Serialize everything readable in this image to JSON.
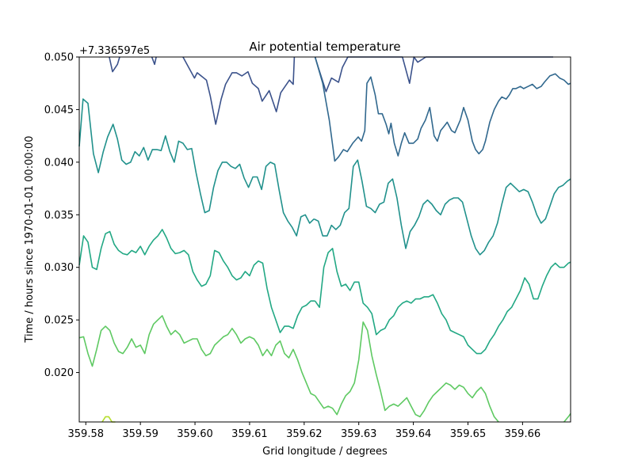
{
  "chart_data": {
    "type": "contour",
    "title": "Air potential temperature",
    "xlabel": "Grid longitude / degrees",
    "ylabel": "Time / hours since 1970-01-01 00:00:00",
    "y_offset_label": "+7.336597e5",
    "xlim": [
      359.5788,
      359.6688
    ],
    "ylim": [
      0.0153,
      0.05
    ],
    "x_ticks": [
      359.58,
      359.59,
      359.6,
      359.61,
      359.62,
      359.63,
      359.64,
      359.65,
      359.66
    ],
    "x_tick_labels": [
      "359.58",
      "359.59",
      "359.60",
      "359.61",
      "359.62",
      "359.63",
      "359.64",
      "359.65",
      "359.66"
    ],
    "y_ticks": [
      0.02,
      0.025,
      0.03,
      0.035,
      0.04,
      0.045,
      0.05
    ],
    "y_tick_labels": [
      "0.020",
      "0.025",
      "0.030",
      "0.035",
      "0.040",
      "0.045",
      "0.050"
    ],
    "series": [
      {
        "color": "#3b528b",
        "x": [
          359.5843,
          359.5849,
          359.5858,
          359.5862
        ],
        "y": [
          0.05,
          0.0486,
          0.0493,
          0.05
        ]
      },
      {
        "color": "#3b528b",
        "x": [
          359.5921,
          359.5926,
          359.5929
        ],
        "y": [
          0.05,
          0.0493,
          0.05
        ]
      },
      {
        "color": "#3b528b",
        "x": [
          359.5978,
          359.5999,
          359.6004,
          359.6021,
          359.6028,
          359.6038,
          359.6048,
          359.6056,
          359.6068,
          359.6076,
          359.6086,
          359.6097,
          359.6105,
          359.6116,
          359.6123,
          359.6136,
          359.6149,
          359.6157,
          359.6173,
          359.618,
          359.6182
        ],
        "y": [
          0.05,
          0.048,
          0.0485,
          0.0478,
          0.0463,
          0.0436,
          0.046,
          0.0474,
          0.0485,
          0.0485,
          0.0482,
          0.0486,
          0.0475,
          0.047,
          0.0458,
          0.0468,
          0.0448,
          0.0466,
          0.0478,
          0.0474,
          0.05
        ]
      },
      {
        "color": "#3b528b",
        "x": [
          359.622,
          359.6226,
          359.624,
          359.625,
          359.6263,
          359.627,
          359.628,
          359.6289,
          359.6299,
          359.6312,
          359.6318,
          359.6326,
          359.6336,
          359.6346,
          359.6353,
          359.6363,
          359.6374,
          359.638,
          359.6393,
          359.6401,
          359.6408,
          359.6423,
          359.6436,
          359.6446,
          359.6455,
          359.6463,
          359.6479,
          359.6488,
          359.6492
        ],
        "y": [
          0.05,
          0.049,
          0.0467,
          0.048,
          0.0476,
          0.049,
          0.05,
          0.05,
          0.05,
          0.05,
          0.05,
          0.05,
          0.05,
          0.05,
          0.05,
          0.05,
          0.05,
          0.05,
          0.0475,
          0.05,
          0.0495,
          0.05,
          0.05,
          0.05,
          0.05,
          0.05,
          0.05,
          0.05,
          0.05
        ]
      },
      {
        "color": "#3b528b",
        "x": [
          359.6492,
          359.6515,
          359.6527,
          359.6541,
          359.6555,
          359.6563,
          359.6573,
          359.6583,
          359.6598,
          359.6607,
          359.662,
          359.6634,
          359.665,
          359.6656
        ],
        "y": [
          0.05,
          0.05,
          0.05,
          0.05,
          0.05,
          0.05,
          0.05,
          0.05,
          0.05,
          0.05,
          0.05,
          0.05,
          0.05,
          0.05
        ]
      },
      {
        "color": "#31688e",
        "x": [
          359.622,
          359.6234,
          359.6246,
          359.6256,
          359.6263,
          359.6272,
          359.6279,
          359.6289,
          359.6299,
          359.6305,
          359.6311,
          359.6315,
          359.6322,
          359.633,
          359.6336,
          359.6343,
          359.635,
          359.6355,
          359.6359,
          359.6365,
          359.6372,
          359.6378,
          359.6384,
          359.6392,
          359.64,
          359.6408,
          359.6414,
          359.6422,
          359.643,
          359.6438,
          359.6444,
          359.645,
          359.6456,
          359.6462,
          359.647,
          359.6476,
          359.6486,
          359.6492,
          359.65,
          359.6508,
          359.6514,
          359.652,
          359.6527,
          359.6532,
          359.654,
          359.6548,
          359.6556,
          359.6562,
          359.657,
          359.6576,
          359.6582,
          359.6588,
          359.6596,
          359.6602,
          359.661,
          359.6618,
          359.6626,
          359.6634,
          359.664,
          359.665,
          359.666,
          359.6668,
          359.6676,
          359.6684,
          359.6688
        ],
        "y": [
          0.05,
          0.0475,
          0.044,
          0.0401,
          0.0405,
          0.0412,
          0.041,
          0.0418,
          0.0424,
          0.042,
          0.043,
          0.0475,
          0.0481,
          0.0464,
          0.0446,
          0.0446,
          0.0436,
          0.0427,
          0.0437,
          0.0418,
          0.0406,
          0.0418,
          0.0428,
          0.0418,
          0.0418,
          0.0422,
          0.0432,
          0.044,
          0.0452,
          0.0425,
          0.042,
          0.043,
          0.0434,
          0.0438,
          0.043,
          0.0428,
          0.044,
          0.0452,
          0.044,
          0.042,
          0.0412,
          0.0408,
          0.0412,
          0.042,
          0.0438,
          0.045,
          0.0458,
          0.0462,
          0.046,
          0.0464,
          0.047,
          0.047,
          0.0472,
          0.047,
          0.0472,
          0.0474,
          0.047,
          0.0472,
          0.0476,
          0.0482,
          0.0484,
          0.048,
          0.0478,
          0.0474,
          0.0475
        ]
      },
      {
        "color": "#21918c",
        "x": [
          359.5788,
          359.5795,
          359.5804,
          359.5814,
          359.5823,
          359.5832,
          359.584,
          359.585,
          359.5858,
          359.5866,
          359.5874,
          359.5882,
          359.589,
          359.5898,
          359.5906,
          359.5914,
          359.5922,
          359.593,
          359.5938,
          359.5946,
          359.5954,
          359.5962,
          359.597,
          359.5978,
          359.5986,
          359.5994,
          359.6002,
          359.601,
          359.6018,
          359.6026,
          359.6034,
          359.6042,
          359.605,
          359.6058,
          359.6066,
          359.6074,
          359.6082,
          359.609,
          359.6098,
          359.6106,
          359.6114,
          359.6122,
          359.613,
          359.6138,
          359.6146,
          359.6154,
          359.6162,
          359.617,
          359.6178,
          359.6186,
          359.6194,
          359.6202,
          359.621,
          359.6218
        ],
        "y": [
          0.0415,
          0.046,
          0.0456,
          0.0408,
          0.039,
          0.041,
          0.0424,
          0.0436,
          0.0422,
          0.0402,
          0.0398,
          0.04,
          0.041,
          0.0406,
          0.0414,
          0.0402,
          0.0412,
          0.0412,
          0.0411,
          0.0425,
          0.041,
          0.04,
          0.042,
          0.0418,
          0.0412,
          0.0413,
          0.039,
          0.037,
          0.0352,
          0.0354,
          0.0376,
          0.0392,
          0.04,
          0.04,
          0.0396,
          0.0394,
          0.0398,
          0.0385,
          0.0376,
          0.0386,
          0.0386,
          0.0374,
          0.0396,
          0.04,
          0.0398,
          0.0374,
          0.0352,
          0.0344,
          0.0338,
          0.033,
          0.0348,
          0.035,
          0.0342,
          0.0346
        ]
      },
      {
        "color": "#21918c",
        "x": [
          359.6218,
          359.6226,
          359.6234,
          359.6242,
          359.625,
          359.6258,
          359.6266,
          359.6274,
          359.6282,
          359.629,
          359.6298,
          359.6306,
          359.6314,
          359.6322,
          359.633,
          359.6338,
          359.6346,
          359.6354,
          359.6362,
          359.637,
          359.6378,
          359.6386,
          359.6394,
          359.6402,
          359.641,
          359.6418,
          359.6426,
          359.6434,
          359.6442,
          359.645,
          359.6458,
          359.6466,
          359.6474,
          359.6482,
          359.649,
          359.6498,
          359.6506,
          359.6514,
          359.6522,
          359.653,
          359.6538,
          359.6546,
          359.6554,
          359.6562,
          359.657,
          359.6578,
          359.6586,
          359.6594,
          359.6602,
          359.661,
          359.6618,
          359.6626,
          359.6634,
          359.6642,
          359.665,
          359.6658,
          359.6666,
          359.6674,
          359.6682,
          359.6688
        ],
        "y": [
          0.0346,
          0.0344,
          0.033,
          0.033,
          0.034,
          0.0336,
          0.034,
          0.0352,
          0.0356,
          0.0396,
          0.0402,
          0.0382,
          0.0358,
          0.0356,
          0.0352,
          0.036,
          0.0362,
          0.038,
          0.0384,
          0.0366,
          0.034,
          0.0318,
          0.0334,
          0.034,
          0.0348,
          0.036,
          0.0364,
          0.036,
          0.0354,
          0.035,
          0.036,
          0.0364,
          0.0366,
          0.0366,
          0.0362,
          0.0346,
          0.033,
          0.0318,
          0.0312,
          0.0316,
          0.0324,
          0.033,
          0.0342,
          0.036,
          0.0376,
          0.038,
          0.0376,
          0.0372,
          0.0374,
          0.0372,
          0.0362,
          0.035,
          0.0342,
          0.0346,
          0.0358,
          0.037,
          0.0376,
          0.0378,
          0.0382,
          0.0384
        ]
      },
      {
        "color": "#22a884",
        "x": [
          359.5788,
          359.5796,
          359.5804,
          359.5812,
          359.582,
          359.5828,
          359.5836,
          359.5844,
          359.5852,
          359.586,
          359.5868,
          359.5876,
          359.5884,
          359.5892,
          359.59,
          359.5908,
          359.5916,
          359.5924,
          359.5932,
          359.594,
          359.5948,
          359.5956,
          359.5964,
          359.5972,
          359.598,
          359.5988,
          359.5996,
          359.6004,
          359.6012,
          359.602,
          359.6028,
          359.6036,
          359.6044,
          359.6052,
          359.606,
          359.6068,
          359.6076,
          359.6084,
          359.6092,
          359.61,
          359.6108,
          359.6116,
          359.6124,
          359.6132,
          359.614,
          359.6148,
          359.6156,
          359.6164,
          359.6172,
          359.618,
          359.6188,
          359.6196,
          359.6204,
          359.6212,
          359.622
        ],
        "y": [
          0.0302,
          0.033,
          0.0324,
          0.03,
          0.0298,
          0.0318,
          0.0332,
          0.0334,
          0.0322,
          0.0316,
          0.0313,
          0.0312,
          0.0316,
          0.0314,
          0.032,
          0.0312,
          0.032,
          0.0326,
          0.033,
          0.0336,
          0.0328,
          0.0318,
          0.0313,
          0.0314,
          0.0316,
          0.0312,
          0.0296,
          0.0288,
          0.0282,
          0.0284,
          0.0292,
          0.0316,
          0.0314,
          0.0306,
          0.03,
          0.0292,
          0.0288,
          0.029,
          0.0296,
          0.0292,
          0.0302,
          0.0306,
          0.0304,
          0.028,
          0.0262,
          0.025,
          0.0238,
          0.0244,
          0.0244,
          0.0242,
          0.0254,
          0.0262,
          0.0264,
          0.0268,
          0.0268
        ]
      },
      {
        "color": "#22a884",
        "x": [
          359.622,
          359.6228,
          359.6236,
          359.6244,
          359.6252,
          359.626,
          359.6268,
          359.6276,
          359.6284,
          359.6292,
          359.63,
          359.6308,
          359.6316,
          359.6324,
          359.6332,
          359.634,
          359.6348,
          359.6356,
          359.6364,
          359.6372,
          359.638,
          359.6388,
          359.6396,
          359.6404,
          359.6412,
          359.642,
          359.6428,
          359.6436,
          359.6444,
          359.6452,
          359.646,
          359.6468,
          359.6476,
          359.6484,
          359.6492,
          359.65,
          359.6508,
          359.6516,
          359.6524,
          359.6532,
          359.654,
          359.6548,
          359.6556,
          359.6564,
          359.6572,
          359.658,
          359.6588,
          359.6596,
          359.6604,
          359.6612,
          359.662,
          359.6628,
          359.6636,
          359.6644,
          359.6652,
          359.666,
          359.6668,
          359.6676,
          359.6684,
          359.6688
        ],
        "y": [
          0.0268,
          0.0262,
          0.03,
          0.0314,
          0.0318,
          0.0296,
          0.0282,
          0.0284,
          0.0278,
          0.0286,
          0.0286,
          0.0266,
          0.0262,
          0.0256,
          0.0236,
          0.024,
          0.0242,
          0.025,
          0.0254,
          0.0262,
          0.0266,
          0.0268,
          0.0266,
          0.027,
          0.027,
          0.0272,
          0.0272,
          0.0274,
          0.0266,
          0.0256,
          0.025,
          0.024,
          0.0238,
          0.0236,
          0.0234,
          0.0226,
          0.0222,
          0.0218,
          0.0218,
          0.0222,
          0.023,
          0.0236,
          0.0244,
          0.025,
          0.0258,
          0.0262,
          0.027,
          0.0278,
          0.029,
          0.0284,
          0.027,
          0.027,
          0.0282,
          0.0292,
          0.03,
          0.0304,
          0.03,
          0.03,
          0.0304,
          0.0305
        ]
      },
      {
        "color": "#5ec962",
        "x": [
          359.5788,
          359.5796,
          359.5804,
          359.5812,
          359.582,
          359.5828,
          359.5836,
          359.5844,
          359.5852,
          359.586,
          359.5868,
          359.5876,
          359.5884,
          359.5892,
          359.59,
          359.5908,
          359.5916,
          359.5924,
          359.5932,
          359.594,
          359.5948,
          359.5956,
          359.5964,
          359.5972,
          359.598,
          359.5988,
          359.5996,
          359.6004,
          359.6012,
          359.602,
          359.6028,
          359.6036,
          359.6044,
          359.6052,
          359.606,
          359.6068,
          359.6076,
          359.6084,
          359.6092,
          359.61,
          359.6108,
          359.6116,
          359.6124,
          359.6132,
          359.614,
          359.6148,
          359.6156,
          359.6164,
          359.6172,
          359.618,
          359.6188,
          359.6196,
          359.6204,
          359.6212,
          359.622
        ],
        "y": [
          0.0233,
          0.0234,
          0.0218,
          0.0206,
          0.0222,
          0.024,
          0.0244,
          0.024,
          0.0228,
          0.022,
          0.0218,
          0.0224,
          0.0232,
          0.0224,
          0.0226,
          0.0218,
          0.0236,
          0.0246,
          0.025,
          0.0254,
          0.0244,
          0.0236,
          0.024,
          0.0236,
          0.0228,
          0.023,
          0.0232,
          0.0232,
          0.0222,
          0.0216,
          0.0218,
          0.0226,
          0.023,
          0.0234,
          0.0236,
          0.0242,
          0.0236,
          0.0228,
          0.0232,
          0.0234,
          0.0232,
          0.0226,
          0.0216,
          0.0222,
          0.0216,
          0.0226,
          0.023,
          0.0218,
          0.0214,
          0.0222,
          0.0212,
          0.02,
          0.019,
          0.018,
          0.0178
        ]
      },
      {
        "color": "#5ec962",
        "x": [
          359.622,
          359.6228,
          359.6236,
          359.6244,
          359.6252,
          359.626,
          359.6268,
          359.6276,
          359.6284,
          359.6292,
          359.63,
          359.6308,
          359.6316,
          359.6324,
          359.6332,
          359.634,
          359.6348,
          359.6356,
          359.6364,
          359.6372,
          359.638,
          359.6388,
          359.6396,
          359.6404,
          359.6412,
          359.642,
          359.6428,
          359.6436,
          359.6444,
          359.6452,
          359.646,
          359.6468,
          359.6476,
          359.6484,
          359.6492,
          359.65,
          359.6508,
          359.6516,
          359.6524,
          359.6532,
          359.654,
          359.6548,
          359.6556
        ],
        "y": [
          0.0178,
          0.0172,
          0.0166,
          0.0168,
          0.0166,
          0.016,
          0.017,
          0.0178,
          0.0182,
          0.019,
          0.0212,
          0.0248,
          0.024,
          0.0216,
          0.0198,
          0.0182,
          0.0164,
          0.0168,
          0.017,
          0.0168,
          0.0172,
          0.0176,
          0.0168,
          0.016,
          0.0158,
          0.0164,
          0.0172,
          0.0178,
          0.0182,
          0.0186,
          0.019,
          0.0188,
          0.0184,
          0.0188,
          0.0186,
          0.018,
          0.0176,
          0.0182,
          0.0186,
          0.018,
          0.0168,
          0.0158,
          0.0153
        ]
      },
      {
        "color": "#5ec962",
        "x": [
          359.6676,
          359.6684,
          359.6688
        ],
        "y": [
          0.0153,
          0.0158,
          0.0161
        ]
      },
      {
        "color": "#b5de2b",
        "x": [
          359.583,
          359.5836,
          359.5842,
          359.5848,
          359.5854
        ],
        "y": [
          0.0153,
          0.0158,
          0.0158,
          0.0153,
          0.0153
        ]
      }
    ]
  }
}
